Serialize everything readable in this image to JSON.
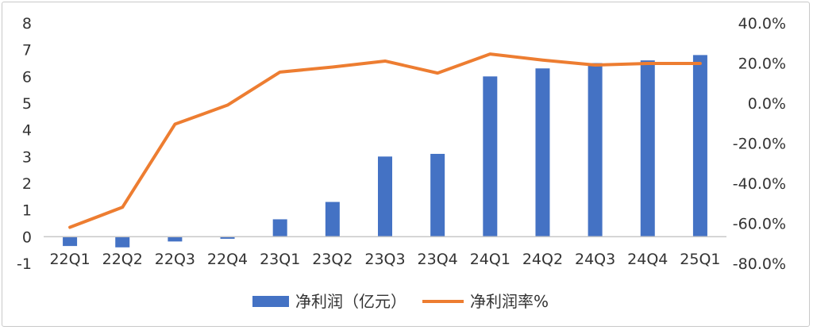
{
  "chart_data": {
    "type": "bar",
    "categories": [
      "22Q1",
      "22Q2",
      "22Q3",
      "22Q4",
      "23Q1",
      "23Q2",
      "23Q3",
      "23Q4",
      "24Q1",
      "24Q2",
      "24Q3",
      "24Q4",
      "25Q1"
    ],
    "series": [
      {
        "name": "净利润（亿元）",
        "type": "bar",
        "axis": "left",
        "values": [
          -0.35,
          -0.4,
          -0.18,
          -0.08,
          0.65,
          1.3,
          3.0,
          3.1,
          6.0,
          6.3,
          6.5,
          6.6,
          6.8
        ]
      },
      {
        "name": "净利润率%",
        "type": "line",
        "axis": "right",
        "values": [
          -62.0,
          -52.0,
          -10.5,
          -1.0,
          15.5,
          18.0,
          21.0,
          15.0,
          24.5,
          21.5,
          19.0,
          19.8,
          19.8
        ]
      }
    ],
    "left_axis": {
      "ylim": [
        -1,
        8
      ],
      "ticks": [
        "-1",
        "0",
        "1",
        "2",
        "3",
        "4",
        "5",
        "6",
        "7",
        "8"
      ]
    },
    "right_axis": {
      "ylim": [
        -80,
        40
      ],
      "ticks": [
        "-80.0%",
        "-60.0%",
        "-40.0%",
        "-20.0%",
        "0.0%",
        "20.0%",
        "40.0%"
      ]
    },
    "colors": {
      "bar": "#4472C4",
      "line": "#ED7D31",
      "axis": "#c8c8c8"
    },
    "grid": false,
    "legend": "bottom-center"
  }
}
